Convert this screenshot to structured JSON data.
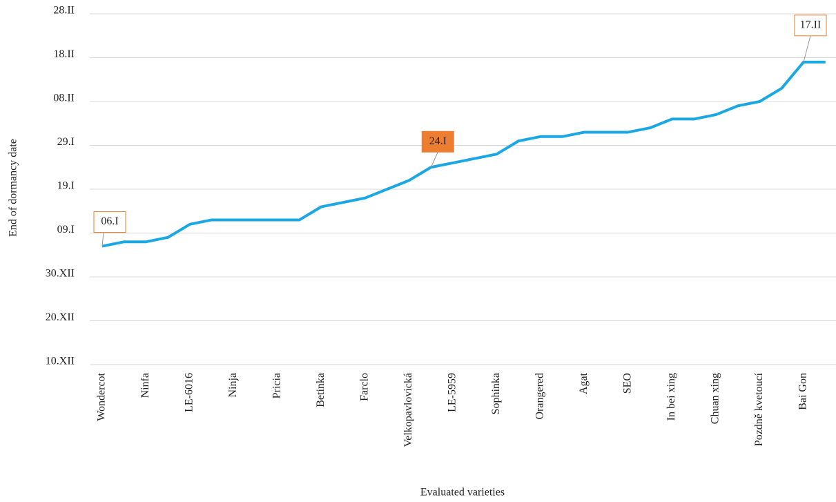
{
  "chart_data": {
    "type": "line",
    "x_label": "Evaluated varieties",
    "y_label": "End of  dormancy date",
    "categories": [
      "Wondercot",
      null,
      "Ninfa",
      null,
      "LE-6016",
      null,
      "Ninja",
      null,
      "Pricia",
      null,
      "Betinka",
      null,
      "Farclo",
      null,
      "Velkopavlovická",
      null,
      "LE-5959",
      null,
      "Sophinka",
      null,
      "Orangered",
      null,
      "Agat",
      null,
      "SEO",
      null,
      "In bei xing",
      null,
      "Chuan xing",
      null,
      "Pozdně kvetoucí",
      null,
      "Bai Gon",
      null
    ],
    "values": [
      37,
      38,
      38,
      39,
      42,
      43,
      43,
      43,
      43,
      43,
      46,
      47,
      48,
      50,
      52,
      55,
      56,
      57,
      58,
      61,
      62,
      62,
      63,
      63,
      63,
      64,
      66,
      66,
      67,
      69,
      70,
      73,
      79,
      79
    ],
    "value_labels": [
      "06.I",
      null,
      null,
      null,
      null,
      null,
      null,
      null,
      null,
      null,
      null,
      null,
      null,
      null,
      null,
      "24.I",
      null,
      null,
      null,
      null,
      null,
      null,
      null,
      null,
      null,
      null,
      null,
      null,
      null,
      null,
      null,
      null,
      "17.II",
      null
    ],
    "color": "#1aa7e2",
    "ylim": [
      10,
      90
    ],
    "yticks": [
      {
        "value": 10,
        "label": "10.XII"
      },
      {
        "value": 20,
        "label": "20.XII"
      },
      {
        "value": 30,
        "label": "30.XII"
      },
      {
        "value": 40,
        "label": "09.I"
      },
      {
        "value": 50,
        "label": "19.I"
      },
      {
        "value": 60,
        "label": "29.I"
      },
      {
        "value": 70,
        "label": "08.II"
      },
      {
        "value": 80,
        "label": "18.II"
      },
      {
        "value": 90,
        "label": "28.II"
      }
    ],
    "grid": true
  }
}
